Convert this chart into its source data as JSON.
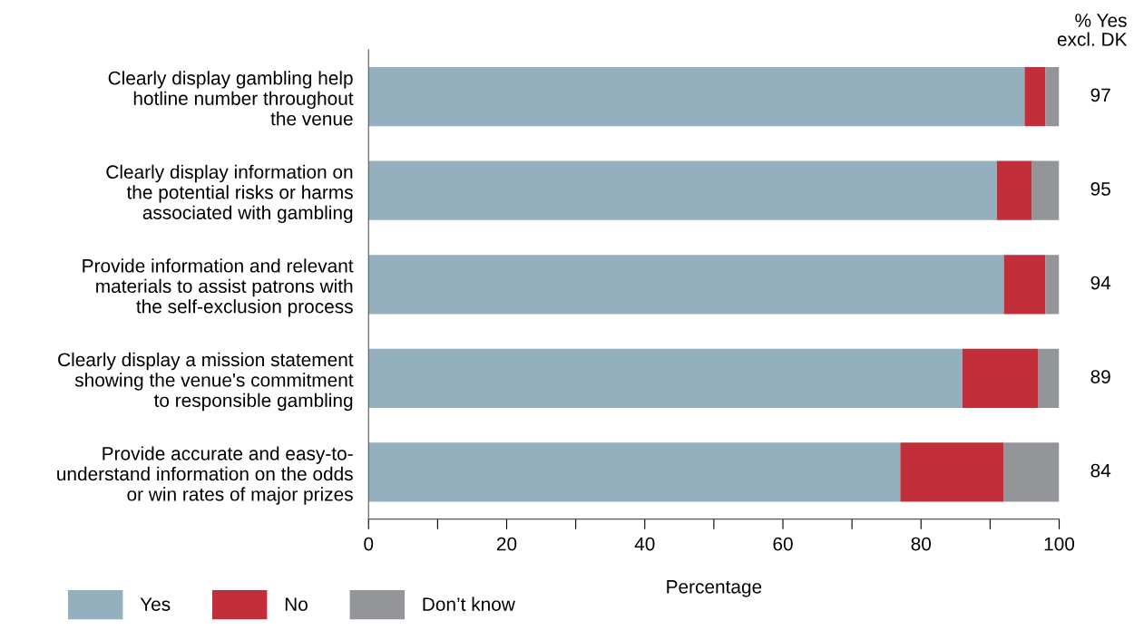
{
  "chart_data": {
    "type": "bar",
    "orientation": "horizontal",
    "stacked": true,
    "categories": [
      "Clearly display gambling help\nhotline number throughout\nthe venue",
      "Clearly display information on\nthe potential risks or harms\nassociated with gambling",
      "Provide information and relevant\nmaterials to assist patrons with\nthe self-exclusion process",
      "Clearly display a mission statement\nshowing the venue's commitment\nto responsible gambling",
      "Provide accurate and easy-to-\nunderstand information on the odds\nor win rates of major prizes"
    ],
    "series": [
      {
        "name": "Yes",
        "color": "#94afbd",
        "values": [
          95,
          91,
          92,
          86,
          77
        ]
      },
      {
        "name": "No",
        "color": "#c22f3a",
        "values": [
          3,
          5,
          6,
          11,
          15
        ]
      },
      {
        "name": "Don’t know",
        "color": "#939598",
        "values": [
          2,
          4,
          2,
          3,
          8
        ]
      }
    ],
    "xlabel": "Percentage",
    "xlim": [
      0,
      100
    ],
    "xticks": [
      0,
      {
        "value": 10,
        "label": null
      },
      20,
      {
        "value": 30,
        "label": null
      },
      40,
      {
        "value": 50,
        "label": null
      },
      60,
      {
        "value": 70,
        "label": null
      },
      80,
      {
        "value": 90,
        "label": null
      },
      100
    ],
    "annotations": [
      "% Yes\nexcl. DK",
      "97",
      "95",
      "94",
      "89",
      "84"
    ],
    "grid": false,
    "legend": "bottom left"
  }
}
